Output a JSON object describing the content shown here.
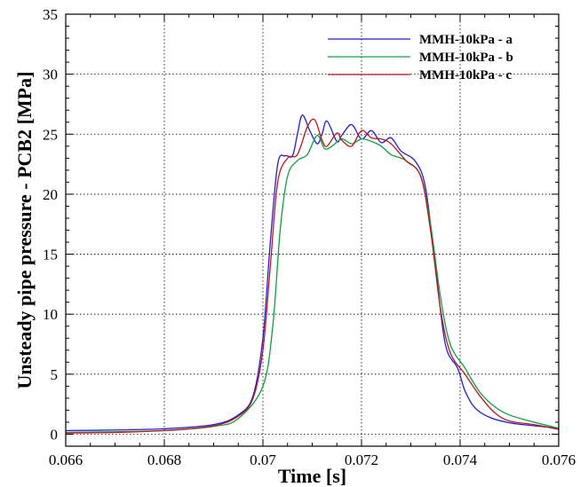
{
  "chart_data": {
    "type": "line",
    "xlabel": "Time [s]",
    "ylabel": "Unsteady pipe pressure - PCB2 [MPa]",
    "xlim": [
      0.066,
      0.076
    ],
    "ylim": [
      -1,
      35
    ],
    "grid": true,
    "legend_position": "top-right",
    "x_ticks": [
      0.066,
      0.068,
      0.07,
      0.072,
      0.074,
      0.076
    ],
    "x_tick_labels": [
      "0.066",
      "0.068",
      "0.07",
      "0.072",
      "0.074",
      "0.076"
    ],
    "y_ticks": [
      0,
      5,
      10,
      15,
      20,
      25,
      30,
      35
    ],
    "y_tick_labels": [
      "0",
      "5",
      "10",
      "15",
      "20",
      "25",
      "30",
      "35"
    ],
    "series": [
      {
        "name": "MMH-10kPa - a",
        "color": "#1f1fd8",
        "points": [
          [
            0.066,
            0.3
          ],
          [
            0.067,
            0.35
          ],
          [
            0.068,
            0.45
          ],
          [
            0.069,
            0.8
          ],
          [
            0.0695,
            1.6
          ],
          [
            0.0698,
            3.2
          ],
          [
            0.07,
            8.0
          ],
          [
            0.07015,
            16.0
          ],
          [
            0.0703,
            22.5
          ],
          [
            0.07045,
            23.2
          ],
          [
            0.0706,
            23.2
          ],
          [
            0.0707,
            25.0
          ],
          [
            0.0708,
            26.6
          ],
          [
            0.07095,
            25.3
          ],
          [
            0.0711,
            24.2
          ],
          [
            0.0712,
            25.0
          ],
          [
            0.0713,
            26.1
          ],
          [
            0.0715,
            24.4
          ],
          [
            0.0716,
            24.9
          ],
          [
            0.0718,
            25.8
          ],
          [
            0.072,
            24.6
          ],
          [
            0.0722,
            25.3
          ],
          [
            0.0724,
            24.3
          ],
          [
            0.0726,
            24.7
          ],
          [
            0.0728,
            23.6
          ],
          [
            0.0731,
            22.7
          ],
          [
            0.0733,
            20.5
          ],
          [
            0.0735,
            14.0
          ],
          [
            0.0737,
            7.5
          ],
          [
            0.07395,
            5.5
          ],
          [
            0.0741,
            3.6
          ],
          [
            0.0743,
            2.2
          ],
          [
            0.0746,
            1.4
          ],
          [
            0.075,
            0.95
          ],
          [
            0.0755,
            0.7
          ],
          [
            0.076,
            0.5
          ]
        ]
      },
      {
        "name": "MMH-10kPa - b",
        "color": "#10a040",
        "points": [
          [
            0.066,
            0.15
          ],
          [
            0.067,
            0.2
          ],
          [
            0.068,
            0.3
          ],
          [
            0.069,
            0.65
          ],
          [
            0.0695,
            1.3
          ],
          [
            0.07,
            4.0
          ],
          [
            0.0702,
            9.0
          ],
          [
            0.07035,
            17.0
          ],
          [
            0.0705,
            21.5
          ],
          [
            0.0707,
            22.8
          ],
          [
            0.0709,
            23.3
          ],
          [
            0.0711,
            24.9
          ],
          [
            0.07125,
            23.8
          ],
          [
            0.0714,
            24.0
          ],
          [
            0.0716,
            24.6
          ],
          [
            0.0718,
            24.2
          ],
          [
            0.072,
            24.6
          ],
          [
            0.0722,
            24.4
          ],
          [
            0.0724,
            24.0
          ],
          [
            0.0726,
            23.3
          ],
          [
            0.0729,
            22.8
          ],
          [
            0.0732,
            21.5
          ],
          [
            0.0734,
            17.5
          ],
          [
            0.0736,
            11.5
          ],
          [
            0.0738,
            7.5
          ],
          [
            0.0741,
            5.5
          ],
          [
            0.0744,
            3.5
          ],
          [
            0.0747,
            2.3
          ],
          [
            0.075,
            1.6
          ],
          [
            0.0755,
            1.0
          ],
          [
            0.076,
            0.5
          ]
        ]
      },
      {
        "name": "MMH-10kPa - c",
        "color": "#c0151b",
        "points": [
          [
            0.066,
            0.1
          ],
          [
            0.067,
            0.15
          ],
          [
            0.068,
            0.3
          ],
          [
            0.069,
            0.7
          ],
          [
            0.0695,
            1.5
          ],
          [
            0.0698,
            3.0
          ],
          [
            0.07,
            7.0
          ],
          [
            0.07015,
            14.0
          ],
          [
            0.0703,
            21.0
          ],
          [
            0.0705,
            23.0
          ],
          [
            0.0707,
            23.3
          ],
          [
            0.0709,
            25.6
          ],
          [
            0.07105,
            26.2
          ],
          [
            0.0712,
            24.5
          ],
          [
            0.0713,
            24.0
          ],
          [
            0.0715,
            25.1
          ],
          [
            0.0716,
            24.5
          ],
          [
            0.0718,
            24.0
          ],
          [
            0.072,
            25.3
          ],
          [
            0.0722,
            24.7
          ],
          [
            0.0724,
            24.6
          ],
          [
            0.0726,
            24.2
          ],
          [
            0.0729,
            22.8
          ],
          [
            0.0732,
            21.5
          ],
          [
            0.0734,
            17.0
          ],
          [
            0.0736,
            10.5
          ],
          [
            0.0738,
            6.8
          ],
          [
            0.0741,
            5.0
          ],
          [
            0.0744,
            3.2
          ],
          [
            0.0747,
            1.8
          ],
          [
            0.075,
            1.1
          ],
          [
            0.0755,
            0.8
          ],
          [
            0.076,
            0.4
          ]
        ]
      }
    ]
  }
}
